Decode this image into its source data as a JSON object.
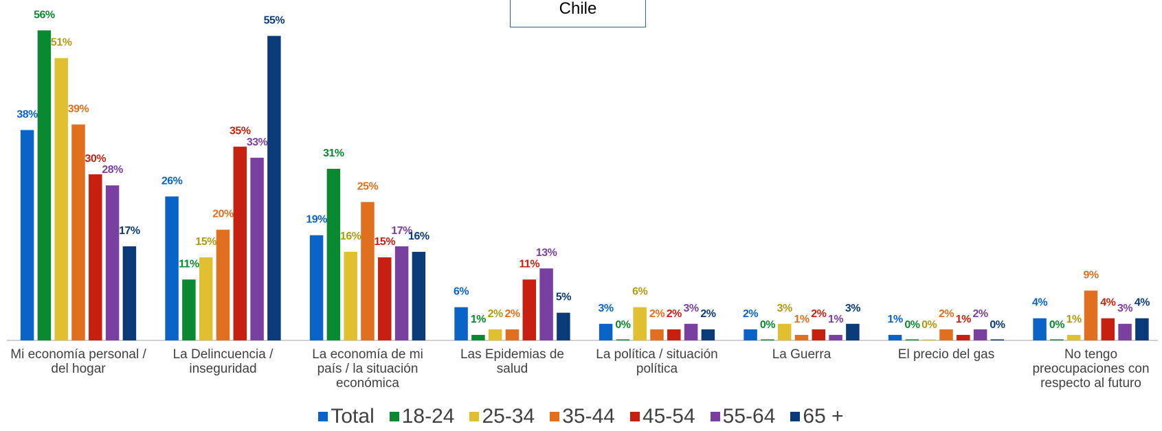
{
  "chart_data": {
    "type": "bar",
    "title": "Chile",
    "categories": [
      "Mi economía personal / del hogar",
      "La Delincuencia / inseguridad",
      "La economía de mi país / la situación económica",
      "Las Epidemias de salud",
      "La política / situación política",
      "La Guerra",
      "El precio del gas",
      "No tengo preocupaciones con respecto al futuro"
    ],
    "ylim": [
      0,
      60
    ],
    "series": [
      {
        "name": "Total",
        "color": "#0a64c8",
        "values": [
          38,
          26,
          19,
          6,
          3,
          2,
          1,
          4
        ],
        "value_labels": [
          "38%",
          "26%",
          "19%",
          "6%",
          "3%",
          "2%",
          "1%",
          "4%"
        ]
      },
      {
        "name": "18-24",
        "color": "#0a8a30",
        "values": [
          56,
          11,
          31,
          1,
          0,
          0,
          0,
          0
        ],
        "value_labels": [
          "56%",
          "11%",
          "31%",
          "1%",
          "0%",
          "0%",
          "0%",
          "0%"
        ]
      },
      {
        "name": "25-34",
        "color": "#e0c030",
        "values": [
          51,
          15,
          16,
          2,
          6,
          3,
          0,
          1
        ],
        "value_labels": [
          "51%",
          "15%",
          "16%",
          "2%",
          "6%",
          "3%",
          "0%",
          "1%"
        ]
      },
      {
        "name": "35-44",
        "color": "#e07020",
        "values": [
          39,
          20,
          25,
          2,
          2,
          1,
          2,
          9
        ],
        "value_labels": [
          "39%",
          "20%",
          "25%",
          "2%",
          "2%",
          "1%",
          "2%",
          "9%"
        ]
      },
      {
        "name": "45-54",
        "color": "#c82010",
        "values": [
          30,
          35,
          15,
          11,
          2,
          2,
          1,
          4
        ],
        "value_labels": [
          "30%",
          "35%",
          "15%",
          "11%",
          "2%",
          "2%",
          "1%",
          "4%"
        ]
      },
      {
        "name": "55-64",
        "color": "#7a40a0",
        "values": [
          28,
          33,
          17,
          13,
          3,
          1,
          2,
          3
        ],
        "value_labels": [
          "28%",
          "33%",
          "17%",
          "13%",
          "3%",
          "1%",
          "2%",
          "3%"
        ]
      },
      {
        "name": "65 +",
        "color": "#0a3a78",
        "values": [
          17,
          55,
          16,
          5,
          2,
          3,
          0,
          4
        ],
        "value_labels": [
          "17%",
          "55%",
          "16%",
          "5%",
          "2%",
          "3%",
          "0%",
          "4%"
        ]
      }
    ]
  }
}
